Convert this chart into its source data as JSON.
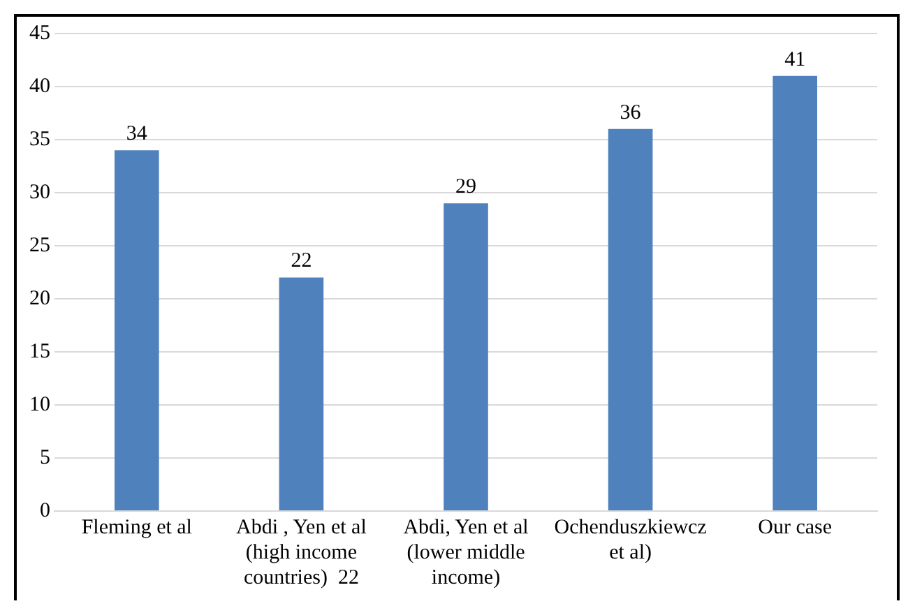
{
  "chart_data": {
    "type": "bar",
    "categories": [
      "Fleming et al",
      "Abdi , Yen et al (high income countries)  22",
      "Abdi, Yen et al (lower middle income)",
      "Ochenduszkiewcz et al)",
      "Our case"
    ],
    "values": [
      34,
      22,
      29,
      36,
      41
    ],
    "color": "#4f81bd",
    "ylim": [
      0,
      45
    ],
    "yticks": [
      0,
      5,
      10,
      15,
      20,
      25,
      30,
      35,
      40,
      45
    ],
    "grid": "y",
    "data_labels": true
  }
}
